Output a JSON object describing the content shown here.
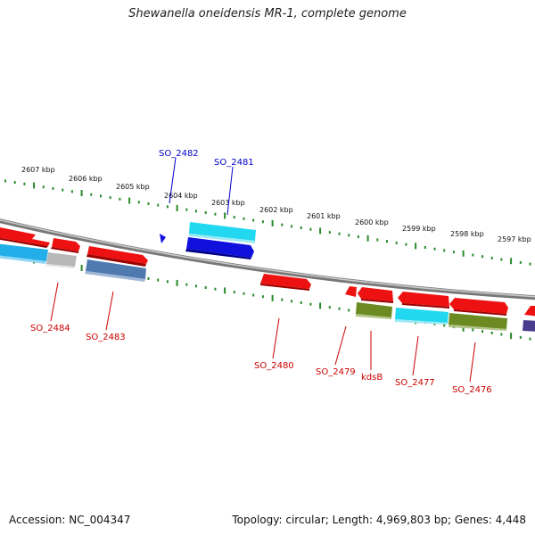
{
  "title": "Shewanella oneidensis MR-1, complete genome",
  "footer": {
    "accession": "Accession: NC_004347",
    "summary": "Topology: circular; Length: 4,969,803 bp; Genes: 4,448"
  },
  "colors": {
    "backbone": "#8a8a8a",
    "ticks": "#2a8a2a",
    "label_red": "#cc0000",
    "label_blue": "#0000cc",
    "red": "#ee1111",
    "cyan": "#22d8f0",
    "blue": "#1111dd",
    "lightblue": "#22aee8",
    "steelblue": "#4f7ab0",
    "grey": "#b8b8b8",
    "olive": "#6b8a22",
    "purple": "#4a3c8c"
  },
  "kbp_labels": [
    "2607 kbp",
    "2606 kbp",
    "2605 kbp",
    "2604 kbp",
    "2603 kbp",
    "2602 kbp",
    "2601 kbp",
    "2600 kbp",
    "2599 kbp",
    "2598 kbp",
    "2597 kbp"
  ],
  "gene_labels": {
    "SO_2482": "SO_2482",
    "SO_2481": "SO_2481",
    "SO_2484": "SO_2484",
    "SO_2483": "SO_2483",
    "SO_2480": "SO_2480",
    "SO_2479": "SO_2479",
    "kdsB": "kdsB",
    "SO_2477": "SO_2477",
    "SO_2476": "SO_2476"
  }
}
